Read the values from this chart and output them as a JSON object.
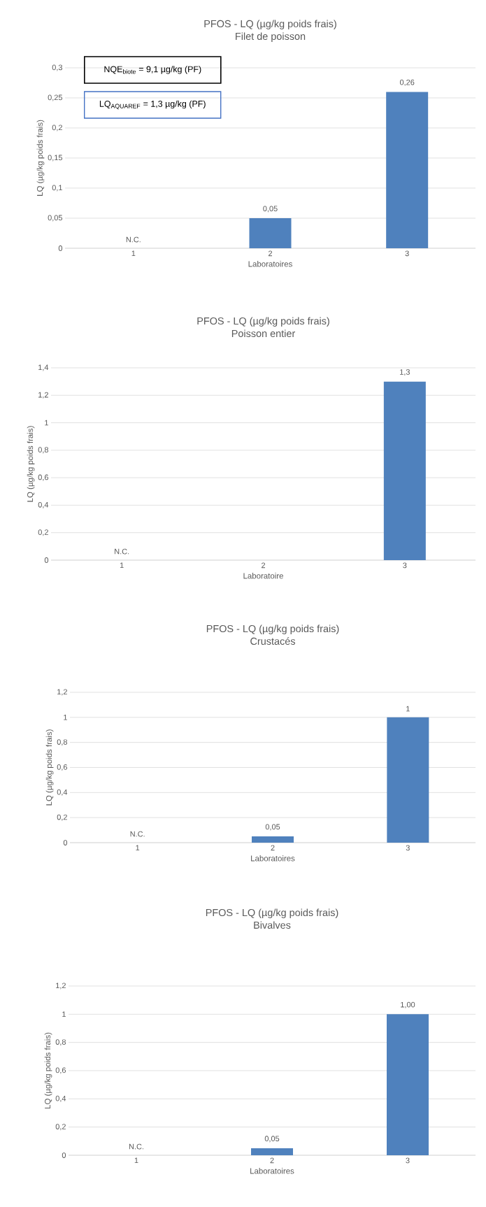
{
  "chart_data": [
    {
      "type": "bar",
      "title": "PFOS - LQ (µg/kg poids frais)",
      "subtitle": "Filet de poisson",
      "xlabel": "Laboratoires",
      "ylabel": "LQ (µg/kg poids frais)",
      "categories": [
        "1",
        "2",
        "3"
      ],
      "values": [
        null,
        0.05,
        0.26
      ],
      "value_labels": [
        "N.C.",
        "0,05",
        "0,26"
      ],
      "color": "#4f81bd",
      "ylim": [
        0,
        0.3
      ],
      "yticks": [
        0,
        {
          "value": 0.05,
          "label": "0,05"
        },
        {
          "value": 0.1,
          "label": "0,1"
        },
        {
          "value": 0.15,
          "label": "0,15"
        },
        {
          "value": 0.2,
          "label": "0,2"
        },
        {
          "value": 0.25,
          "label": "0,25"
        },
        {
          "value": 0.3,
          "label": "0,3"
        }
      ],
      "grid": "y",
      "annotations": [
        "NQE$_{biote}$ = 9,1 µg/kg (PF)",
        "LQ$_{AQUAREF}$ = 1,3 µg/kg (PF)"
      ]
    },
    {
      "type": "bar",
      "title": "PFOS - LQ (µg/kg poids frais)",
      "subtitle": "Poisson entier",
      "xlabel": "Laboratoire",
      "ylabel": "LQ (µg/kg poids frais)",
      "categories": [
        "1",
        "2",
        "3"
      ],
      "values": [
        null,
        null,
        1.3
      ],
      "value_labels": [
        "N.C.",
        null,
        "1,3"
      ],
      "color": "#4f81bd",
      "ylim": [
        0,
        1.4
      ],
      "yticks": [
        0,
        {
          "value": 0.2,
          "label": "0,2"
        },
        {
          "value": 0.4,
          "label": "0,4"
        },
        {
          "value": 0.6,
          "label": "0,6"
        },
        {
          "value": 0.8,
          "label": "0,8"
        },
        1,
        {
          "value": 1.2,
          "label": "1,2"
        },
        {
          "value": 1.4,
          "label": "1,4"
        }
      ],
      "grid": "y"
    },
    {
      "type": "bar",
      "title": "PFOS - LQ (µg/kg poids frais)",
      "subtitle": "Crustacés",
      "xlabel": "Laboratoires",
      "ylabel": "LQ (µg/kg poids frais)",
      "categories": [
        "1",
        "2",
        "3"
      ],
      "values": [
        null,
        0.05,
        1
      ],
      "value_labels": [
        "N.C.",
        "0,05",
        "1"
      ],
      "color": "#4f81bd",
      "ylim": [
        0,
        1.2
      ],
      "yticks": [
        0,
        {
          "value": 0.2,
          "label": "0,2"
        },
        {
          "value": 0.4,
          "label": "0,4"
        },
        {
          "value": 0.6,
          "label": "0,6"
        },
        {
          "value": 0.8,
          "label": "0,8"
        },
        1,
        {
          "value": 1.2,
          "label": "1,2"
        }
      ],
      "grid": "y"
    },
    {
      "type": "bar",
      "title": "PFOS - LQ (µg/kg poids frais)",
      "subtitle": "Bivalves",
      "xlabel": "Laboratoires",
      "ylabel": "LQ (µg/kg poids frais)",
      "categories": [
        "1",
        "2",
        "3"
      ],
      "values": [
        null,
        0.05,
        1.0
      ],
      "value_labels": [
        "N.C.",
        "0,05",
        "1,00"
      ],
      "color": "#4f81bd",
      "ylim": [
        0,
        1.2
      ],
      "yticks": [
        0,
        {
          "value": 0.2,
          "label": "0,2"
        },
        {
          "value": 0.4,
          "label": "0,4"
        },
        {
          "value": 0.6,
          "label": "0,6"
        },
        {
          "value": 0.8,
          "label": "0,8"
        },
        1,
        {
          "value": 1.2,
          "label": "1,2"
        }
      ],
      "grid": "y"
    }
  ]
}
